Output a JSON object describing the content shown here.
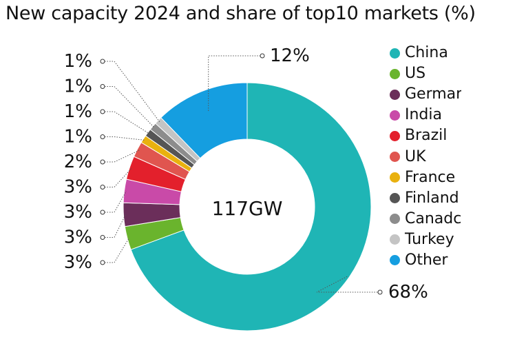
{
  "chart_data": {
    "type": "pie",
    "title": "New capacity 2024 and share of top10 markets (%)",
    "center_label": "117GW",
    "categories": [
      "China",
      "US",
      "Germar",
      "India",
      "Brazil",
      "UK",
      "France",
      "Finland",
      "Canadc",
      "Turkey",
      "Other"
    ],
    "values": [
      68,
      3,
      3,
      3,
      3,
      2,
      1,
      1,
      1,
      1,
      12
    ],
    "value_labels": [
      "68%",
      "3%",
      "3%",
      "3%",
      "3%",
      "2%",
      "1%",
      "1%",
      "1%",
      "1%",
      "12%"
    ],
    "colors": [
      "#1fb5b5",
      "#6ab42d",
      "#6b2e5a",
      "#c94aa8",
      "#e3202c",
      "#e0554f",
      "#e9b10f",
      "#555555",
      "#8c8c8c",
      "#c4c4c4",
      "#159ee0"
    ],
    "legend_position": "right",
    "donut": true
  }
}
